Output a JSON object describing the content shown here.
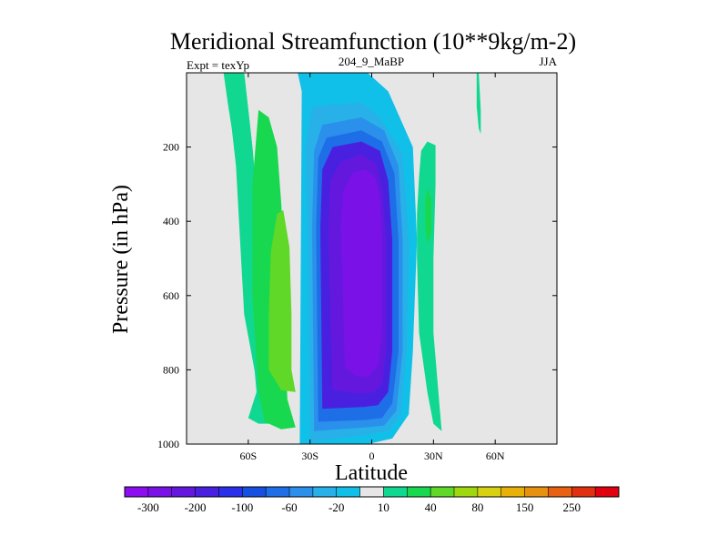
{
  "chart_data": {
    "type": "heatmap",
    "title": "Meridional Streamfunction (10**9kg/m-2)",
    "subtitle_left": "Expt = texYp",
    "subtitle_center": "204_9_MaBP",
    "subtitle_right": "JJA",
    "xlabel": "Latitude",
    "ylabel": "Pressure (in hPa)",
    "xlim": [
      -90,
      90
    ],
    "ylim": [
      1000,
      0
    ],
    "x_ticks": [
      {
        "value": -60,
        "label": "60S"
      },
      {
        "value": -30,
        "label": "30S"
      },
      {
        "value": 0,
        "label": "0"
      },
      {
        "value": 30,
        "label": "30N"
      },
      {
        "value": 60,
        "label": "60N"
      }
    ],
    "y_ticks": [
      {
        "value": 200,
        "label": "200"
      },
      {
        "value": 400,
        "label": "400"
      },
      {
        "value": 600,
        "label": "600"
      },
      {
        "value": 800,
        "label": "800"
      },
      {
        "value": 1000,
        "label": "1000"
      }
    ],
    "colorbar": {
      "colors": [
        "#8c0ef0",
        "#7a12e8",
        "#6418de",
        "#4a20e0",
        "#2a30e8",
        "#1650e0",
        "#1e6ee8",
        "#2a90ec",
        "#28b0e8",
        "#10c0e8",
        "#e6e6e6",
        "#10d890",
        "#18d850",
        "#60d828",
        "#a0d810",
        "#d8d010",
        "#e8b008",
        "#e89010",
        "#e86010",
        "#e03010",
        "#e00010"
      ],
      "labels": [
        "-300",
        "-200",
        "-100",
        "-60",
        "-20",
        "10",
        "40",
        "80",
        "150",
        "250"
      ]
    },
    "contour_bands": [
      {
        "level": -20,
        "color": "#10c0e8",
        "poly": [
          [
            -35,
            1000
          ],
          [
            -34,
            50
          ],
          [
            -36,
            0
          ],
          [
            -2,
            0
          ],
          [
            8,
            50
          ],
          [
            20,
            200
          ],
          [
            22,
            450
          ],
          [
            20,
            750
          ],
          [
            18,
            920
          ],
          [
            10,
            985
          ],
          [
            -2,
            1000
          ]
        ]
      },
      {
        "level": -60,
        "color": "#28b0e8",
        "poly": [
          [
            -30,
            995
          ],
          [
            -31,
            450
          ],
          [
            -32,
            200
          ],
          [
            -29,
            90
          ],
          [
            -5,
            80
          ],
          [
            4,
            120
          ],
          [
            15,
            220
          ],
          [
            18,
            450
          ],
          [
            17,
            750
          ],
          [
            14,
            920
          ],
          [
            8,
            965
          ],
          [
            -3,
            975
          ]
        ]
      },
      {
        "level": -100,
        "color": "#2a90ec",
        "poly": [
          [
            -28,
            965
          ],
          [
            -29,
            420
          ],
          [
            -28,
            210
          ],
          [
            -24,
            140
          ],
          [
            -5,
            120
          ],
          [
            6,
            155
          ],
          [
            13,
            250
          ],
          [
            15,
            450
          ],
          [
            15,
            750
          ],
          [
            12,
            910
          ],
          [
            6,
            950
          ],
          [
            -3,
            955
          ]
        ]
      },
      {
        "level": -150,
        "color": "#1e6ee8",
        "poly": [
          [
            -26,
            940
          ],
          [
            -27,
            420
          ],
          [
            -26,
            230
          ],
          [
            -22,
            175
          ],
          [
            -5,
            155
          ],
          [
            5,
            185
          ],
          [
            11,
            270
          ],
          [
            13,
            450
          ],
          [
            13,
            750
          ],
          [
            10,
            890
          ],
          [
            5,
            930
          ],
          [
            -3,
            935
          ]
        ]
      },
      {
        "level": -200,
        "color": "#4a20e0",
        "poly": [
          [
            -24,
            905
          ],
          [
            -25,
            420
          ],
          [
            -24,
            260
          ],
          [
            -19,
            200
          ],
          [
            -5,
            185
          ],
          [
            4,
            210
          ],
          [
            8,
            290
          ],
          [
            10,
            450
          ],
          [
            10,
            750
          ],
          [
            8,
            860
          ],
          [
            3,
            895
          ],
          [
            -4,
            900
          ]
        ]
      },
      {
        "level": -250,
        "color": "#6418de",
        "poly": [
          [
            -19,
            855
          ],
          [
            -21,
            420
          ],
          [
            -20,
            290
          ],
          [
            -15,
            240
          ],
          [
            -5,
            220
          ],
          [
            2,
            245
          ],
          [
            5,
            310
          ],
          [
            7,
            450
          ],
          [
            7,
            750
          ],
          [
            5,
            840
          ],
          [
            1,
            860
          ],
          [
            -5,
            865
          ]
        ]
      },
      {
        "level": -300,
        "color": "#7a12e8",
        "poly": [
          [
            -13,
            790
          ],
          [
            -15,
            420
          ],
          [
            -14,
            320
          ],
          [
            -9,
            270
          ],
          [
            -3,
            260
          ],
          [
            2,
            285
          ],
          [
            4,
            340
          ],
          [
            5,
            450
          ],
          [
            5,
            700
          ],
          [
            3,
            790
          ],
          [
            -2,
            820
          ],
          [
            -8,
            815
          ]
        ]
      },
      {
        "level": 10,
        "color": "#10d890",
        "poly": [
          [
            -72,
            0
          ],
          [
            -62,
            0
          ],
          [
            -58,
            200
          ],
          [
            -55,
            400
          ],
          [
            -50,
            600
          ],
          [
            -48,
            800
          ],
          [
            -44,
            920
          ],
          [
            -43,
            945
          ],
          [
            -50,
            935
          ],
          [
            -53,
            900
          ],
          [
            -56,
            830
          ],
          [
            -62,
            650
          ],
          [
            -64,
            450
          ],
          [
            -66,
            250
          ],
          [
            -68,
            150
          ],
          [
            -70,
            80
          ]
        ]
      },
      {
        "level": 10,
        "color": "#10d890",
        "poly": [
          [
            -62,
            0
          ],
          [
            -58,
            200
          ],
          [
            -55,
            400
          ],
          [
            -50,
            600
          ],
          [
            -48,
            800
          ],
          [
            -44,
            920
          ],
          [
            -43,
            945
          ],
          [
            -55,
            945
          ],
          [
            -60,
            930
          ],
          [
            -56,
            860
          ],
          [
            -60,
            600
          ],
          [
            -62,
            400
          ],
          [
            -62,
            100
          ]
        ]
      },
      {
        "level": 40,
        "color": "#18d850",
        "poly": [
          [
            -55,
            100
          ],
          [
            -50,
            120
          ],
          [
            -46,
            200
          ],
          [
            -44,
            350
          ],
          [
            -42,
            550
          ],
          [
            -42,
            750
          ],
          [
            -41,
            880
          ],
          [
            -37,
            955
          ],
          [
            -44,
            960
          ],
          [
            -52,
            940
          ],
          [
            -55,
            860
          ],
          [
            -58,
            600
          ],
          [
            -58,
            300
          ]
        ]
      },
      {
        "level": 80,
        "color": "#60d828",
        "poly": [
          [
            -46,
            380
          ],
          [
            -43,
            370
          ],
          [
            -40,
            470
          ],
          [
            -39,
            650
          ],
          [
            -39,
            800
          ],
          [
            -37,
            860
          ],
          [
            -44,
            855
          ],
          [
            -50,
            800
          ],
          [
            -50,
            650
          ],
          [
            -49,
            480
          ]
        ]
      },
      {
        "level": 10,
        "color": "#10d890",
        "poly": [
          [
            23,
            280
          ],
          [
            24,
            210
          ],
          [
            27,
            185
          ],
          [
            31,
            195
          ],
          [
            31,
            300
          ],
          [
            30,
            500
          ],
          [
            30,
            700
          ],
          [
            33,
            900
          ],
          [
            34,
            965
          ],
          [
            30,
            945
          ],
          [
            27,
            860
          ],
          [
            23,
            700
          ],
          [
            22,
            500
          ],
          [
            22,
            380
          ]
        ]
      },
      {
        "level": 40,
        "color": "#18d850",
        "poly": [
          [
            26,
            345
          ],
          [
            27,
            310
          ],
          [
            29,
            340
          ],
          [
            29,
            430
          ],
          [
            27,
            460
          ],
          [
            26,
            420
          ]
        ]
      },
      {
        "level": 10,
        "color": "#10d890",
        "poly": [
          [
            51,
            0
          ],
          [
            52,
            0
          ],
          [
            53,
            100
          ],
          [
            53,
            165
          ],
          [
            52,
            150
          ],
          [
            51,
            90
          ]
        ]
      }
    ]
  }
}
